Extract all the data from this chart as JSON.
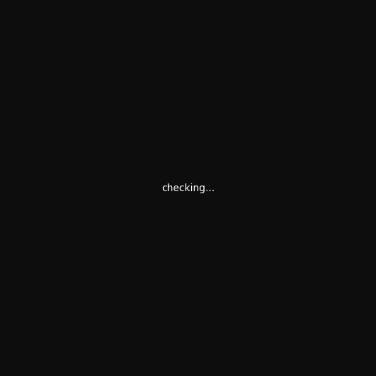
{
  "bg_color": "#0d0d0d",
  "bond_color": "#ffffff",
  "bond_width": 2.0,
  "atom_colors": {
    "N": "#2222ee",
    "O": "#ee0000",
    "Cl": "#00bb00",
    "C": "#ffffff"
  },
  "font_size": 14,
  "font_size_small": 12
}
